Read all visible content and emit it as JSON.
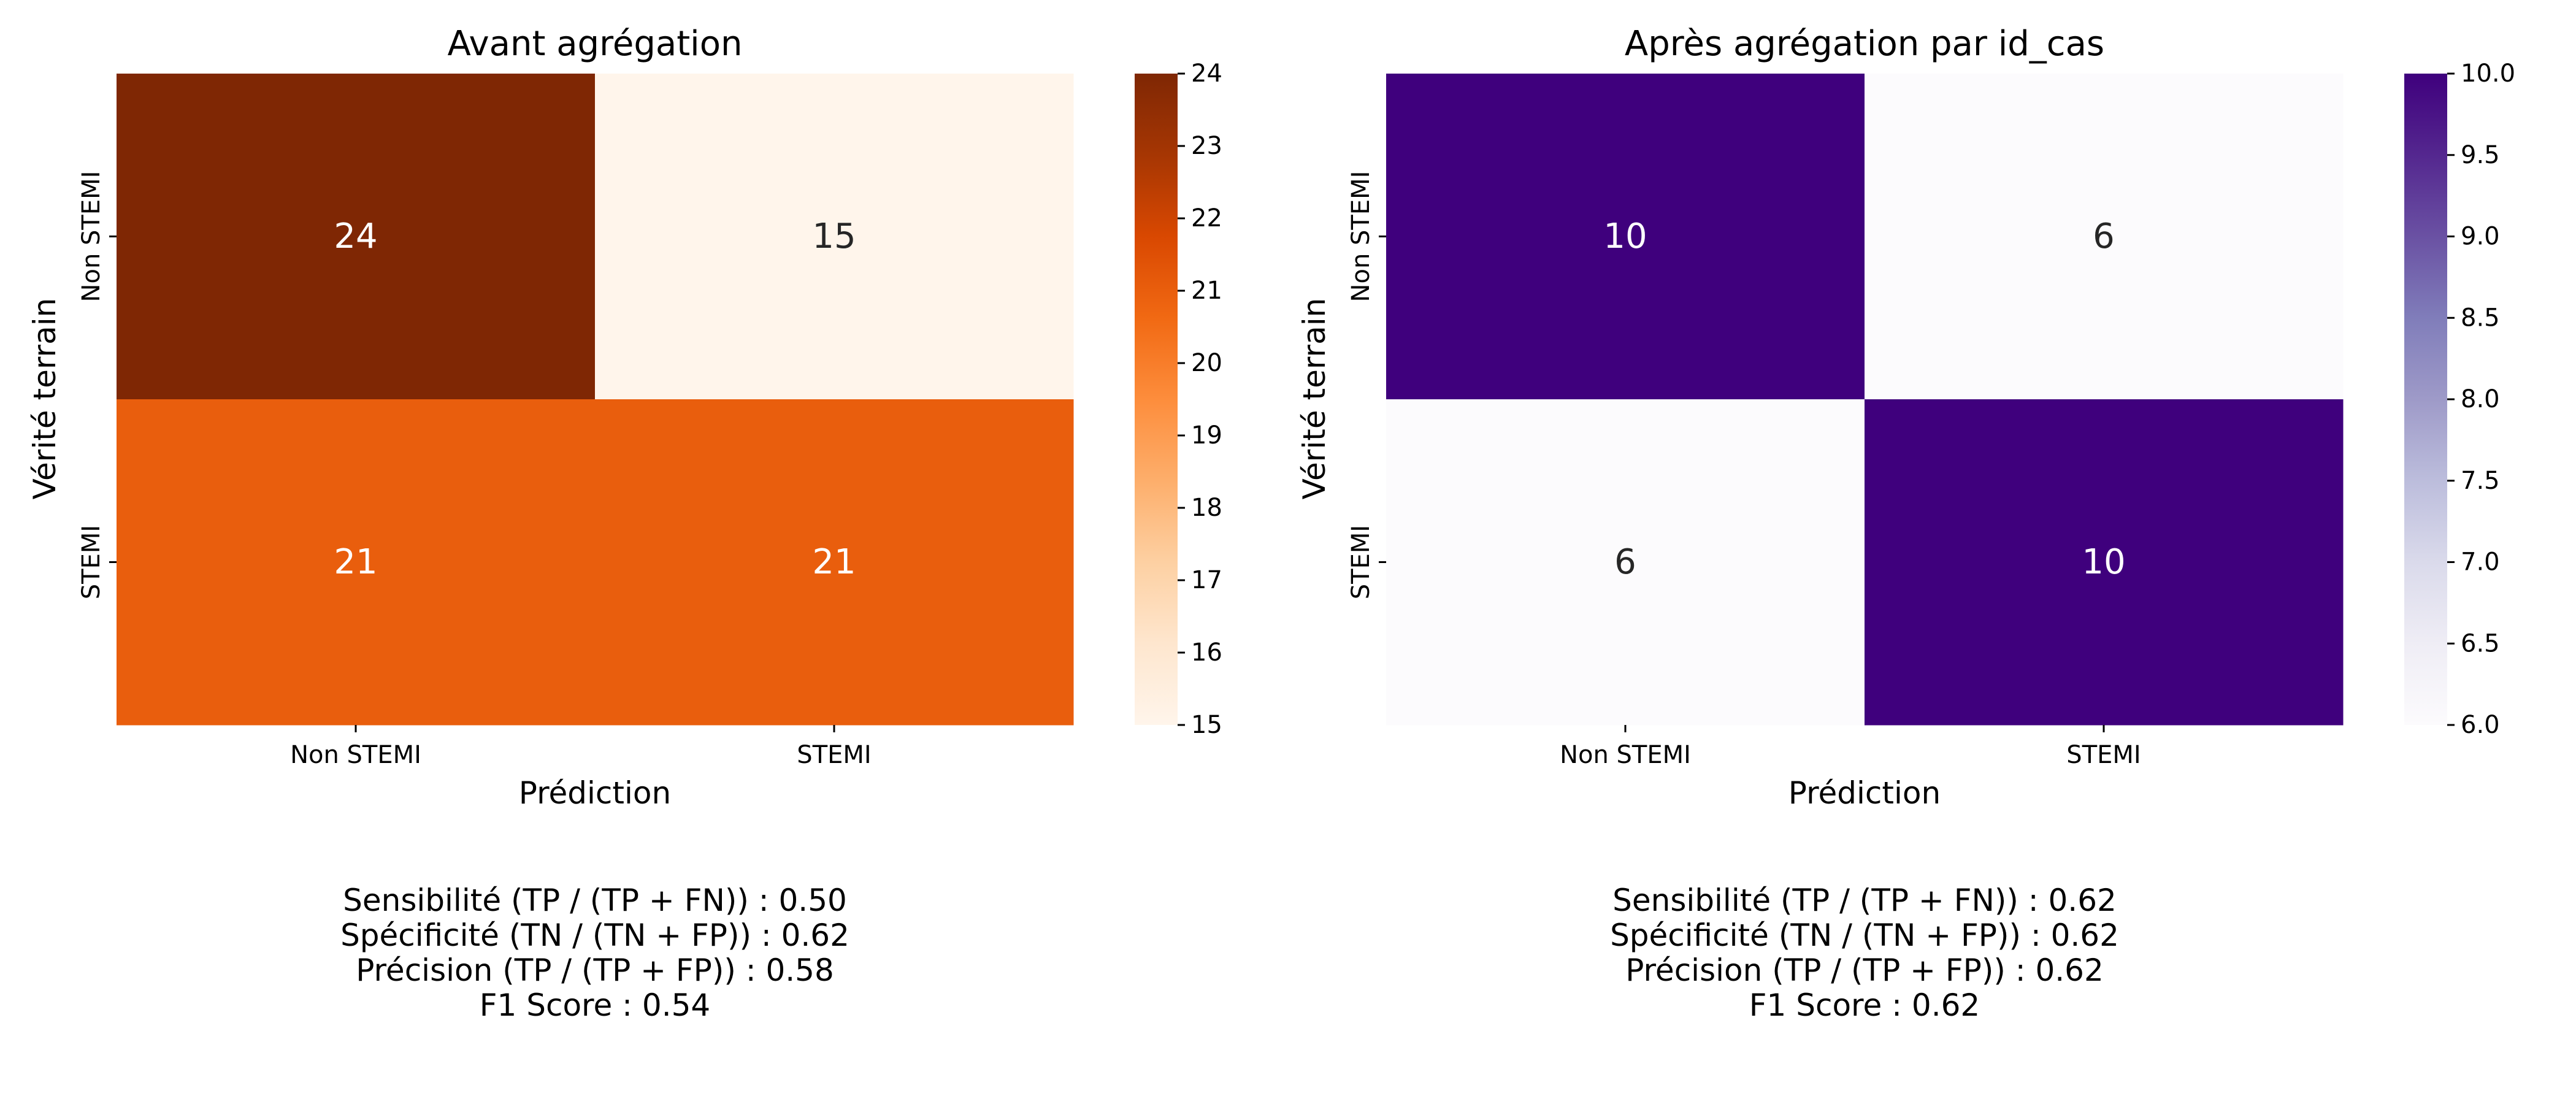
{
  "chart_data": [
    {
      "type": "heatmap",
      "title": "Avant agrégation",
      "xlabel": "Prédiction",
      "ylabel": "Vérité terrain",
      "x_categories": [
        "Non STEMI",
        "STEMI"
      ],
      "y_categories": [
        "Non STEMI",
        "STEMI"
      ],
      "values": [
        [
          24,
          15
        ],
        [
          21,
          21
        ]
      ],
      "colormap": "Oranges",
      "colorbar": {
        "min": 15,
        "max": 24,
        "ticks": [
          "15",
          "16",
          "17",
          "18",
          "19",
          "20",
          "21",
          "22",
          "23",
          "24"
        ]
      },
      "metrics": [
        "Sensibilité (TP / (TP + FN)) : 0.50",
        "Spécificité (TN / (TN + FP)) : 0.62",
        "Précision (TP / (TP + FP)) : 0.58",
        "F1 Score : 0.54"
      ]
    },
    {
      "type": "heatmap",
      "title": "Après agrégation par id_cas",
      "xlabel": "Prédiction",
      "ylabel": "Vérité terrain",
      "x_categories": [
        "Non STEMI",
        "STEMI"
      ],
      "y_categories": [
        "Non STEMI",
        "STEMI"
      ],
      "values": [
        [
          10,
          6
        ],
        [
          6,
          10
        ]
      ],
      "colormap": "Purples",
      "colorbar": {
        "min": 6,
        "max": 10,
        "ticks": [
          "6.0",
          "6.5",
          "7.0",
          "7.5",
          "8.0",
          "8.5",
          "9.0",
          "9.5",
          "10.0"
        ]
      },
      "metrics": [
        "Sensibilité (TP / (TP + FN)) : 0.62",
        "Spécificité (TN / (TN + FP)) : 0.62",
        "Précision (TP / (TP + FP)) : 0.62",
        "F1 Score : 0.62"
      ]
    }
  ],
  "colors": {
    "oranges_low": "#fff5eb",
    "oranges_high": "#7f2704",
    "purples_low": "#fcfbfd",
    "purples_high": "#3f007d"
  }
}
